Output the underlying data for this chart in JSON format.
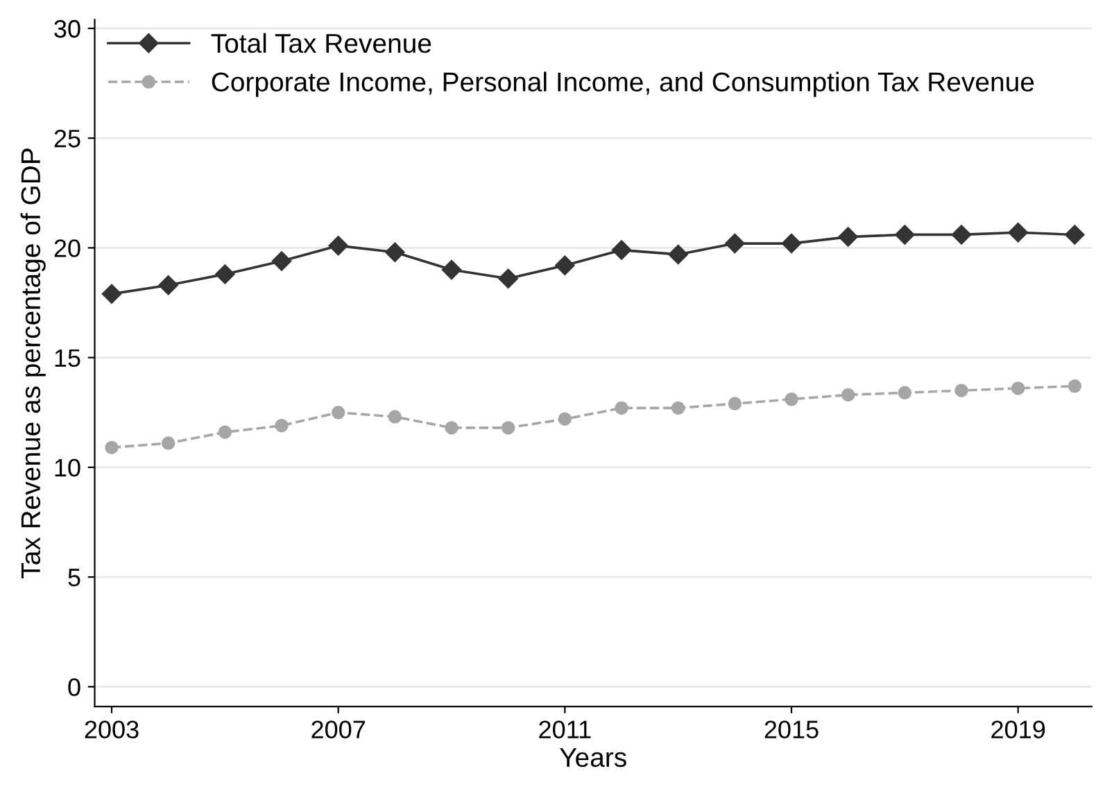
{
  "chart_data": {
    "type": "line",
    "xlabel": "Years",
    "ylabel": "Tax Revenue as percentage of GDP",
    "x": [
      2003,
      2004,
      2005,
      2006,
      2007,
      2008,
      2009,
      2010,
      2011,
      2012,
      2013,
      2014,
      2015,
      2016,
      2017,
      2018,
      2019,
      2020
    ],
    "series": [
      {
        "name": "Total Tax Revenue",
        "color": "#333333",
        "marker": "diamond",
        "line_style": "solid",
        "values": [
          17.9,
          18.3,
          18.8,
          19.4,
          20.1,
          19.8,
          19.0,
          18.6,
          19.2,
          19.9,
          19.7,
          20.2,
          20.2,
          20.5,
          20.6,
          20.6,
          20.7,
          20.6
        ]
      },
      {
        "name": "Corporate Income, Personal Income, and Consumption Tax Revenue",
        "color": "#a6a6a6",
        "marker": "circle",
        "line_style": "dashed",
        "values": [
          10.9,
          11.1,
          11.6,
          11.9,
          12.5,
          12.3,
          11.8,
          11.8,
          12.2,
          12.7,
          12.7,
          12.9,
          13.1,
          13.3,
          13.4,
          13.5,
          13.6,
          13.7
        ]
      }
    ],
    "xlim": [
      2002.7,
      2020.3
    ],
    "xticks": [
      2003,
      2007,
      2011,
      2015,
      2019
    ],
    "ylim": [
      -0.9,
      30.4
    ],
    "yticks": [
      0,
      5,
      10,
      15,
      20,
      25,
      30
    ],
    "grid": "y",
    "legend": "top left"
  }
}
